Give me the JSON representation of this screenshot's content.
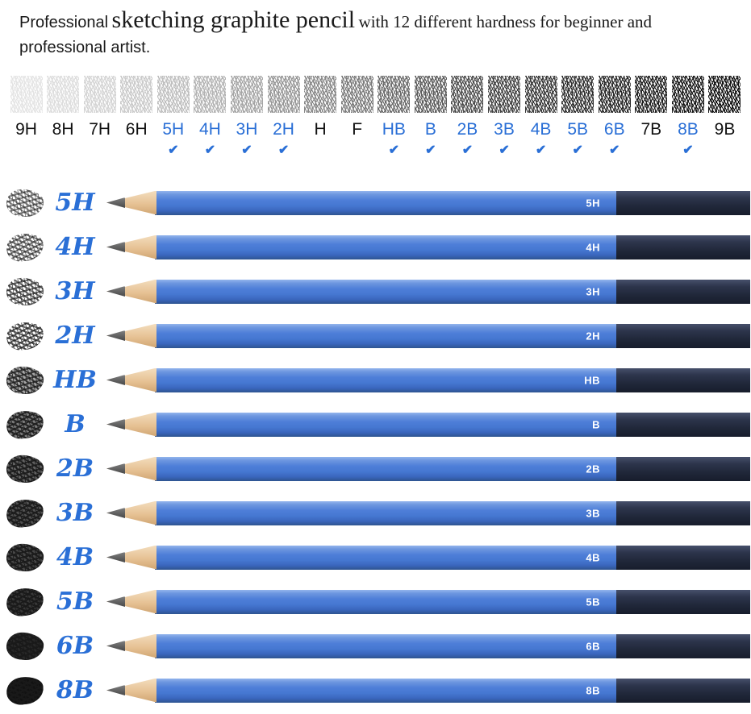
{
  "header": {
    "prefix": "Professional",
    "emphasis": "sketching graphite pencil",
    "suffix": "with 12 different hardness for beginner and",
    "line2": "professional artist."
  },
  "scale": {
    "check_glyph": "✔",
    "grades": [
      {
        "label": "9H",
        "checked": false,
        "highlight": false,
        "darkness": 0.1
      },
      {
        "label": "8H",
        "checked": false,
        "highlight": false,
        "darkness": 0.13
      },
      {
        "label": "7H",
        "checked": false,
        "highlight": false,
        "darkness": 0.17
      },
      {
        "label": "6H",
        "checked": false,
        "highlight": false,
        "darkness": 0.21
      },
      {
        "label": "5H",
        "checked": true,
        "highlight": true,
        "darkness": 0.26
      },
      {
        "label": "4H",
        "checked": true,
        "highlight": true,
        "darkness": 0.31
      },
      {
        "label": "3H",
        "checked": true,
        "highlight": true,
        "darkness": 0.37
      },
      {
        "label": "2H",
        "checked": true,
        "highlight": true,
        "darkness": 0.43
      },
      {
        "label": "H",
        "checked": false,
        "highlight": false,
        "darkness": 0.49
      },
      {
        "label": "F",
        "checked": false,
        "highlight": false,
        "darkness": 0.55
      },
      {
        "label": "HB",
        "checked": true,
        "highlight": true,
        "darkness": 0.62
      },
      {
        "label": "B",
        "checked": true,
        "highlight": true,
        "darkness": 0.68
      },
      {
        "label": "2B",
        "checked": true,
        "highlight": true,
        "darkness": 0.74
      },
      {
        "label": "3B",
        "checked": true,
        "highlight": true,
        "darkness": 0.79
      },
      {
        "label": "4B",
        "checked": true,
        "highlight": true,
        "darkness": 0.83
      },
      {
        "label": "5B",
        "checked": true,
        "highlight": true,
        "darkness": 0.87
      },
      {
        "label": "6B",
        "checked": true,
        "highlight": true,
        "darkness": 0.91
      },
      {
        "label": "7B",
        "checked": false,
        "highlight": false,
        "darkness": 0.94
      },
      {
        "label": "8B",
        "checked": true,
        "highlight": true,
        "darkness": 0.97
      },
      {
        "label": "9B",
        "checked": false,
        "highlight": false,
        "darkness": 1.0
      }
    ]
  },
  "pencils": {
    "items": [
      {
        "grade": "5H",
        "scribble_darkness": 0.5
      },
      {
        "grade": "4H",
        "scribble_darkness": 0.55
      },
      {
        "grade": "3H",
        "scribble_darkness": 0.62
      },
      {
        "grade": "2H",
        "scribble_darkness": 0.66
      },
      {
        "grade": "HB",
        "scribble_darkness": 0.72
      },
      {
        "grade": "B",
        "scribble_darkness": 0.8
      },
      {
        "grade": "2B",
        "scribble_darkness": 0.85
      },
      {
        "grade": "3B",
        "scribble_darkness": 0.88
      },
      {
        "grade": "4B",
        "scribble_darkness": 0.9
      },
      {
        "grade": "5B",
        "scribble_darkness": 0.93
      },
      {
        "grade": "6B",
        "scribble_darkness": 0.96
      },
      {
        "grade": "8B",
        "scribble_darkness": 1.0
      }
    ]
  },
  "colors": {
    "accent_blue": "#2a6fd6",
    "barrel_blue": "#4678d2",
    "cap_navy": "#232a3d",
    "wood_tan": "#e6c193"
  }
}
